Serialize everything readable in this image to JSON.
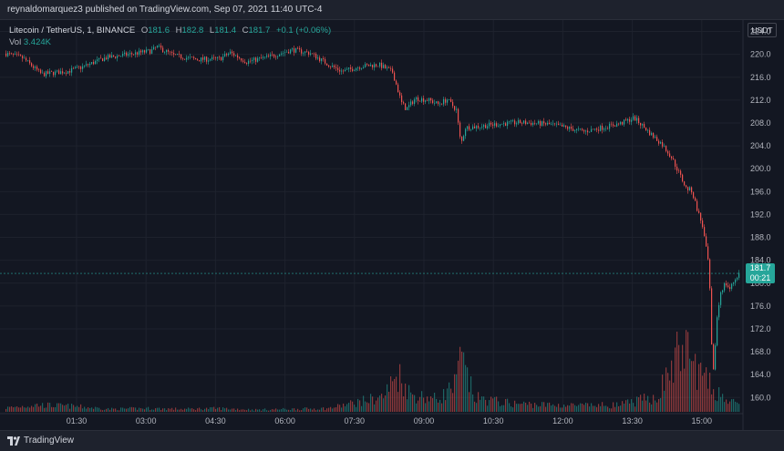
{
  "header": {
    "publisher": "reynaldomarquez3 published on TradingView.com, Sep 07, 2021 11:40 UTC-4"
  },
  "legend": {
    "symbol": "Litecoin / TetherUS, 1, BINANCE",
    "open_label": "O",
    "open": "181.6",
    "high_label": "H",
    "high": "182.8",
    "low_label": "L",
    "low": "181.4",
    "close_label": "C",
    "close": "181.7",
    "change": "+0.1 (+0.06%)",
    "volume_label": "Vol",
    "volume": "3.424K"
  },
  "axis": {
    "currency": "USDT"
  },
  "price_tag": {
    "price": "181.7",
    "countdown": "00:21"
  },
  "footer": {
    "brand": "TradingView"
  },
  "colors": {
    "up": "#26a69a",
    "down": "#ef5350",
    "background": "#131722",
    "grid": "#1e222d"
  },
  "chart_data": {
    "type": "candlestick",
    "symbol": "LTCUSDT",
    "interval": "1 minute",
    "y_ticks": [
      224.0,
      220.0,
      216.0,
      212.0,
      208.0,
      204.0,
      200.0,
      196.0,
      192.0,
      188.0,
      184.0,
      180.0,
      176.0,
      172.0,
      168.0,
      164.0,
      160.0
    ],
    "x_ticks": [
      "01:30",
      "03:00",
      "04:30",
      "06:00",
      "07:30",
      "09:00",
      "10:30",
      "12:00",
      "13:30",
      "15:00"
    ],
    "ylim": [
      157.5,
      226.0
    ],
    "last_price": 181.7,
    "price_path": [
      [
        0,
        220.4
      ],
      [
        25,
        219.3
      ],
      [
        45,
        216.5
      ],
      [
        75,
        217.1
      ],
      [
        90,
        217.8
      ],
      [
        115,
        219.4
      ],
      [
        145,
        220.1
      ],
      [
        165,
        220.6
      ],
      [
        172,
        221.3
      ],
      [
        190,
        219.8
      ],
      [
        215,
        219.1
      ],
      [
        240,
        219.2
      ],
      [
        252,
        220.3
      ],
      [
        270,
        218.7
      ],
      [
        295,
        219.6
      ],
      [
        320,
        220.8
      ],
      [
        340,
        220.2
      ],
      [
        360,
        218.2
      ],
      [
        375,
        217.0
      ],
      [
        395,
        217.9
      ],
      [
        415,
        218.2
      ],
      [
        430,
        216.9
      ],
      [
        440,
        211.5
      ],
      [
        445,
        210.4
      ],
      [
        455,
        212.3
      ],
      [
        470,
        212.0
      ],
      [
        480,
        211.3
      ],
      [
        490,
        212.1
      ],
      [
        500,
        210.3
      ],
      [
        505,
        204.2
      ],
      [
        510,
        207.2
      ],
      [
        525,
        207.4
      ],
      [
        545,
        207.8
      ],
      [
        570,
        208.1
      ],
      [
        600,
        207.8
      ],
      [
        620,
        207.2
      ],
      [
        640,
        206.5
      ],
      [
        660,
        207.2
      ],
      [
        680,
        207.9
      ],
      [
        695,
        208.9
      ],
      [
        705,
        207.4
      ],
      [
        715,
        205.8
      ],
      [
        725,
        204.4
      ],
      [
        735,
        202.3
      ],
      [
        745,
        199.0
      ],
      [
        752,
        196.6
      ],
      [
        758,
        196.2
      ],
      [
        765,
        192.5
      ],
      [
        770,
        190.0
      ],
      [
        773,
        187.0
      ],
      [
        776,
        184.0
      ],
      [
        779,
        176.0
      ],
      [
        781,
        162.0
      ],
      [
        783,
        167.0
      ],
      [
        786,
        174.0
      ],
      [
        790,
        178.5
      ],
      [
        795,
        180.0
      ],
      [
        800,
        179.0
      ],
      [
        805,
        180.5
      ],
      [
        810,
        181.7
      ]
    ],
    "volume_path": [
      [
        0,
        0.05
      ],
      [
        40,
        0.1
      ],
      [
        80,
        0.08
      ],
      [
        120,
        0.04
      ],
      [
        160,
        0.05
      ],
      [
        200,
        0.04
      ],
      [
        240,
        0.05
      ],
      [
        280,
        0.03
      ],
      [
        320,
        0.04
      ],
      [
        360,
        0.05
      ],
      [
        420,
        0.22
      ],
      [
        436,
        0.55
      ],
      [
        450,
        0.25
      ],
      [
        480,
        0.18
      ],
      [
        500,
        0.4
      ],
      [
        504,
        0.78
      ],
      [
        520,
        0.2
      ],
      [
        560,
        0.12
      ],
      [
        600,
        0.1
      ],
      [
        640,
        0.09
      ],
      [
        680,
        0.1
      ],
      [
        720,
        0.22
      ],
      [
        748,
        0.95
      ],
      [
        760,
        0.7
      ],
      [
        770,
        0.5
      ],
      [
        780,
        0.35
      ],
      [
        790,
        0.25
      ],
      [
        800,
        0.15
      ],
      [
        808,
        0.1
      ]
    ]
  }
}
